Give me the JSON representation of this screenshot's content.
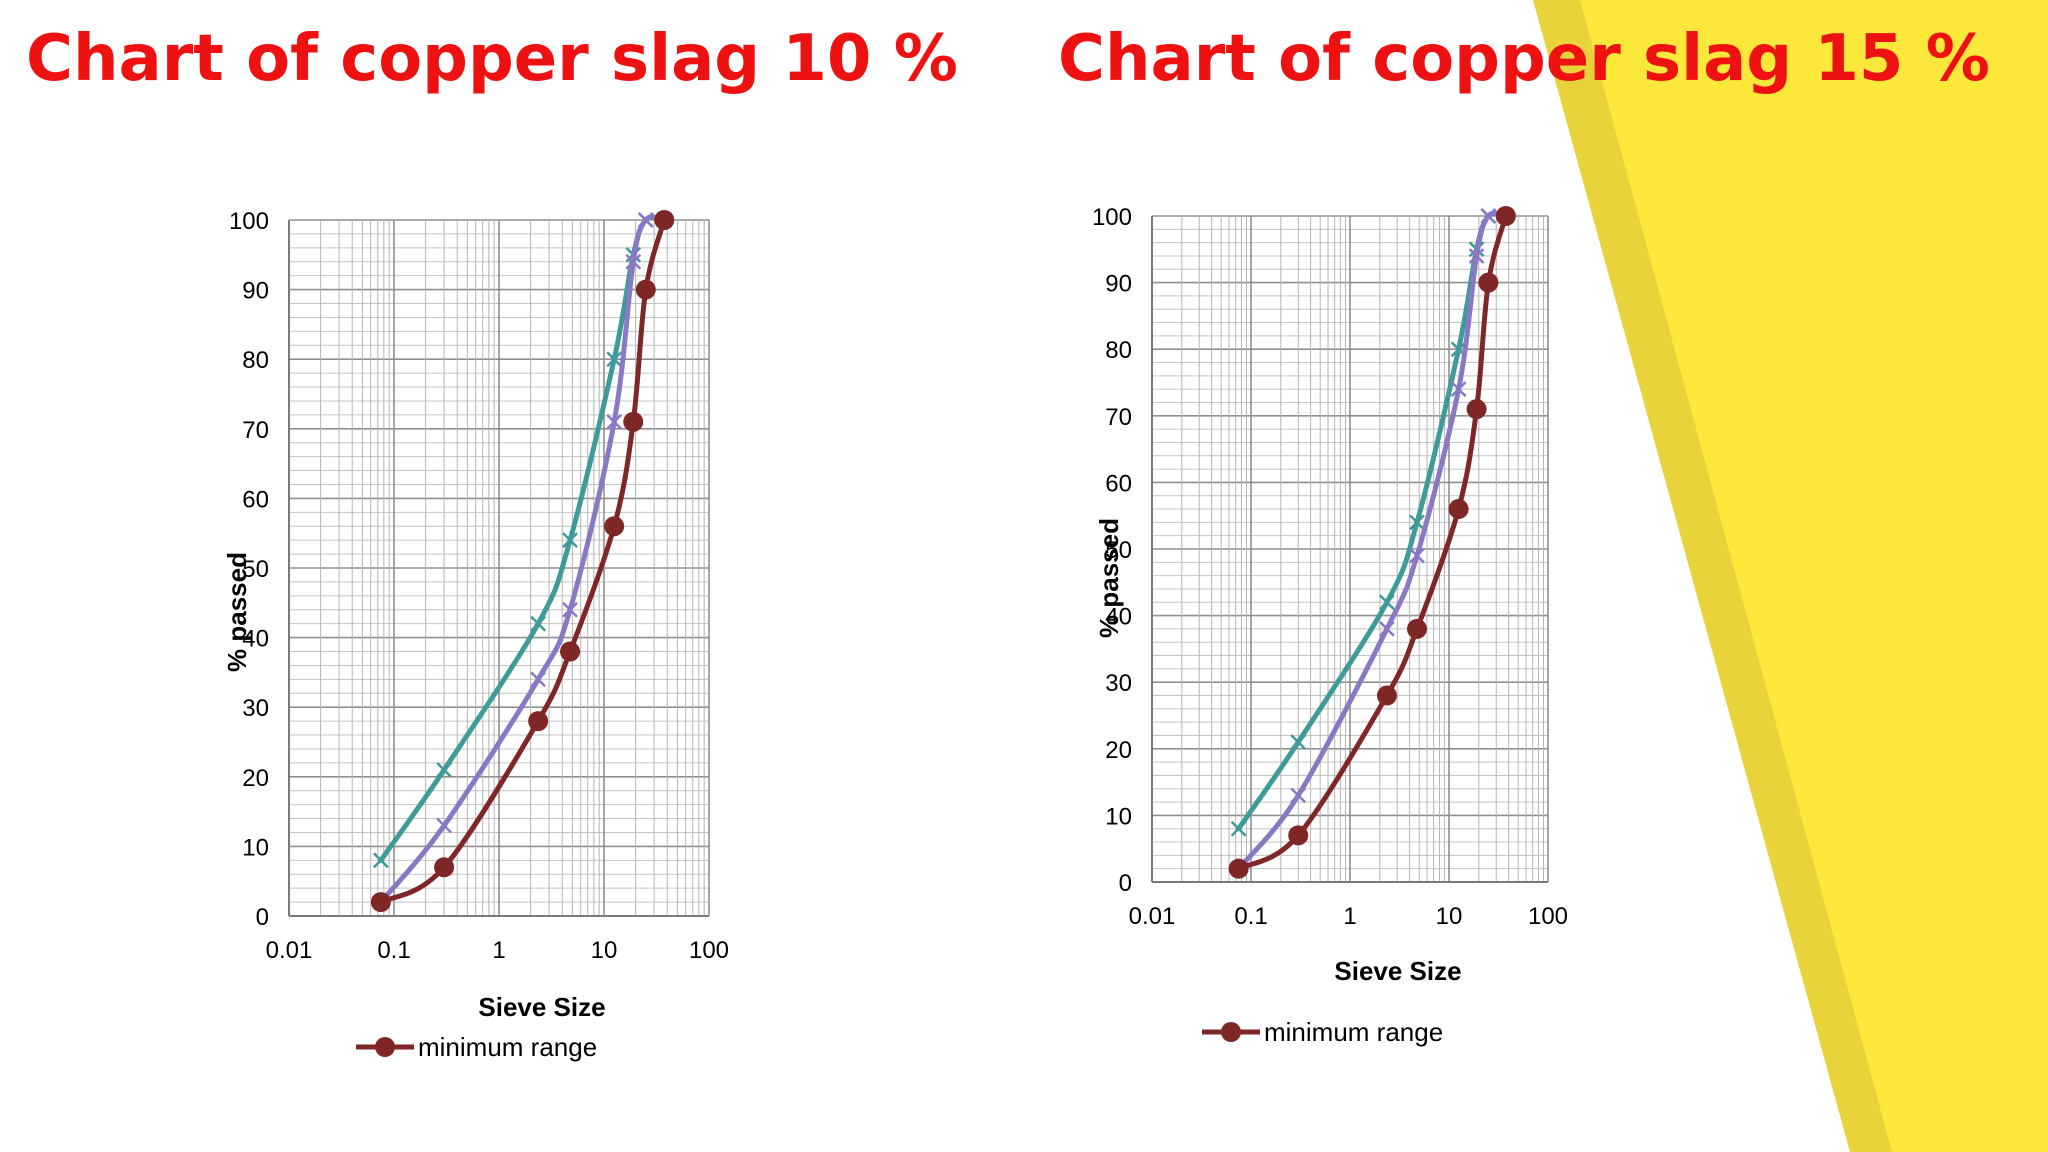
{
  "slide": {
    "left_title": "Chart of copper slag 10 %",
    "right_title": "Chart of copper slag 15 %"
  },
  "colors": {
    "title": "#ee1111",
    "accent_yellow": "#fce83a",
    "accent_yellow_dark": "#e8d43a"
  },
  "chart_data": [
    {
      "type": "line",
      "title": "Chart of copper slag 10 %",
      "xlabel": "Sieve Size",
      "ylabel": "% passed",
      "x_scale": "log",
      "xlim": [
        0.01,
        100
      ],
      "ylim": [
        0,
        100
      ],
      "x_ticks": [
        "0.01",
        "0.1",
        "1",
        "10",
        "100"
      ],
      "y_ticks": [
        "0",
        "10",
        "20",
        "30",
        "40",
        "50",
        "60",
        "70",
        "80",
        "90",
        "100"
      ],
      "grid": true,
      "legend": "bottom",
      "series": [
        {
          "name": "",
          "color": "#3f9a9a",
          "marker": "x",
          "points": [
            [
              0.075,
              8
            ],
            [
              0.3,
              21
            ],
            [
              2.36,
              42
            ],
            [
              4.75,
              54
            ],
            [
              12.5,
              80
            ],
            [
              19,
              95
            ],
            [
              25,
              100
            ],
            [
              37.5,
              100
            ]
          ]
        },
        {
          "name": "",
          "color": "#8a78c4",
          "marker": "x",
          "points": [
            [
              0.075,
              2
            ],
            [
              0.3,
              13
            ],
            [
              2.36,
              34
            ],
            [
              4.75,
              44
            ],
            [
              12.5,
              71
            ],
            [
              19,
              94
            ],
            [
              25,
              100
            ],
            [
              37.5,
              100
            ]
          ]
        },
        {
          "name": "minimum range",
          "color": "#7f2626",
          "marker": "circle",
          "points": [
            [
              0.075,
              2
            ],
            [
              0.3,
              7
            ],
            [
              2.36,
              28
            ],
            [
              4.75,
              38
            ],
            [
              12.5,
              56
            ],
            [
              19,
              71
            ],
            [
              25,
              90
            ],
            [
              37.5,
              100
            ]
          ]
        }
      ]
    },
    {
      "type": "line",
      "title": "Chart of copper slag 15 %",
      "xlabel": "Sieve Size",
      "ylabel": "% passed",
      "x_scale": "log",
      "xlim": [
        0.01,
        100
      ],
      "ylim": [
        0,
        100
      ],
      "x_ticks": [
        "0.01",
        "0.1",
        "1",
        "10",
        "100"
      ],
      "y_ticks": [
        "0",
        "10",
        "20",
        "30",
        "40",
        "50",
        "60",
        "70",
        "80",
        "90",
        "100"
      ],
      "grid": true,
      "legend": "bottom",
      "series": [
        {
          "name": "",
          "color": "#3f9a9a",
          "marker": "x",
          "points": [
            [
              0.075,
              8
            ],
            [
              0.3,
              21
            ],
            [
              2.36,
              42
            ],
            [
              4.75,
              54
            ],
            [
              12.5,
              80
            ],
            [
              19,
              95
            ],
            [
              25,
              100
            ],
            [
              37.5,
              100
            ]
          ]
        },
        {
          "name": "",
          "color": "#8a78c4",
          "marker": "x",
          "points": [
            [
              0.075,
              2
            ],
            [
              0.3,
              13
            ],
            [
              2.36,
              38
            ],
            [
              4.75,
              49
            ],
            [
              12.5,
              74
            ],
            [
              19,
              94
            ],
            [
              25,
              100
            ],
            [
              37.5,
              100
            ]
          ]
        },
        {
          "name": "minimum range",
          "color": "#7f2626",
          "marker": "circle",
          "points": [
            [
              0.075,
              2
            ],
            [
              0.3,
              7
            ],
            [
              2.36,
              28
            ],
            [
              4.75,
              38
            ],
            [
              12.5,
              56
            ],
            [
              19,
              71
            ],
            [
              25,
              90
            ],
            [
              37.5,
              100
            ]
          ]
        }
      ]
    }
  ]
}
